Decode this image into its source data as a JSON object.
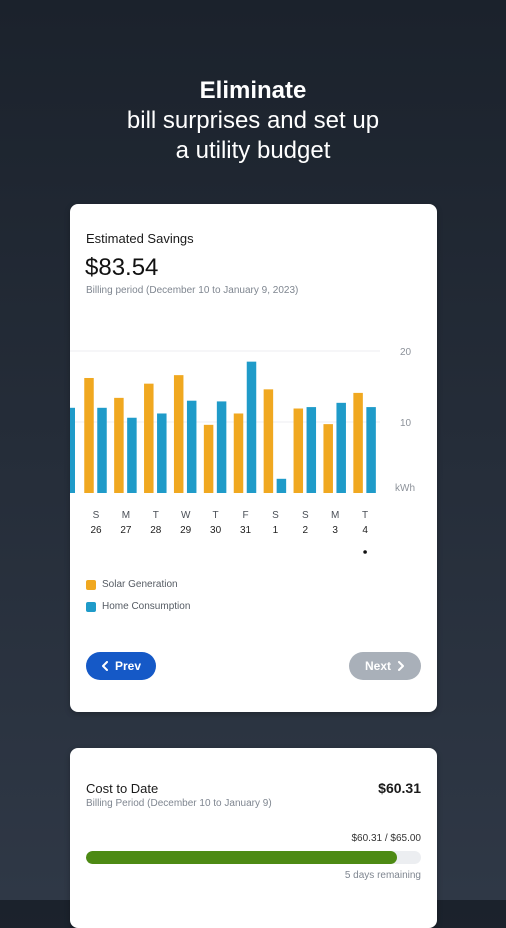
{
  "headline": {
    "title": "Eliminate",
    "subtitle_line1": "bill surprises and set up",
    "subtitle_line2": "a utility budget"
  },
  "savings_card": {
    "label": "Estimated Savings",
    "amount": "$83.54",
    "billing_period": "Billing period (December 10 to January 9, 2023)",
    "prev_label": "Prev",
    "next_label": "Next"
  },
  "chart_data": {
    "type": "bar",
    "categories": [
      "S 26",
      "M 27",
      "T 28",
      "W 29",
      "T 30",
      "F 31",
      "S 1",
      "S 2",
      "M 3",
      "T 4"
    ],
    "days": [
      "S",
      "M",
      "T",
      "W",
      "T",
      "F",
      "S",
      "S",
      "M",
      "T"
    ],
    "dates": [
      "26",
      "27",
      "28",
      "29",
      "30",
      "31",
      "1",
      "2",
      "3",
      "4"
    ],
    "series": [
      {
        "name": "Solar Generation",
        "color": "#f0a820",
        "values": [
          16.2,
          13.4,
          15.4,
          16.6,
          9.6,
          11.2,
          14.6,
          11.9,
          9.7,
          14.1
        ]
      },
      {
        "name": "Home Consumption",
        "color": "#1f9bc9",
        "values": [
          12.0,
          10.6,
          11.2,
          13.0,
          12.9,
          18.5,
          2.0,
          12.1,
          12.7,
          12.1
        ]
      }
    ],
    "partial_left_value": 12.0,
    "y_ticks": [
      "20",
      "10"
    ],
    "unit": "kWh",
    "ylim": [
      0,
      20
    ],
    "selected_index": 9
  },
  "cost_card": {
    "label": "Cost to Date",
    "amount": "$60.31",
    "billing_period": "Billing Period (December 10 to January 9)",
    "progress_text": "$60.31 / $65.00",
    "progress": 0.928,
    "remaining": "5 days remaining",
    "progress_color": "#4d8a14"
  }
}
